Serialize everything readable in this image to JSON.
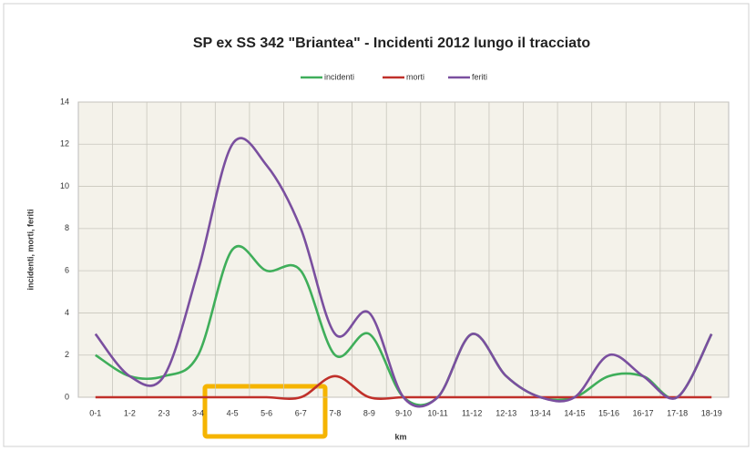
{
  "chart_data": {
    "type": "line",
    "title": "SP ex SS 342 \"Briantea\" - Incidenti 2012 lungo il tracciato",
    "x_label": "km",
    "y_label": "incidenti, morti, feriti",
    "categories": [
      "0-1",
      "1-2",
      "2-3",
      "3-4",
      "4-5",
      "5-6",
      "6-7",
      "7-8",
      "8-9",
      "9-10",
      "10-11",
      "11-12",
      "12-13",
      "13-14",
      "14-15",
      "15-16",
      "16-17",
      "17-18",
      "18-19"
    ],
    "series": [
      {
        "name": "incidenti",
        "color": "#3fae5a",
        "values": [
          2,
          1,
          1,
          2,
          7,
          6,
          6,
          2,
          3,
          0,
          0,
          3,
          1,
          0,
          0,
          1,
          1,
          0,
          3
        ]
      },
      {
        "name": "morti",
        "color": "#c0302a",
        "values": [
          0,
          0,
          0,
          0,
          0,
          0,
          0,
          1,
          0,
          0,
          0,
          0,
          0,
          0,
          0,
          0,
          0,
          0,
          0
        ]
      },
      {
        "name": "feriti",
        "color": "#7a4f9f",
        "values": [
          3,
          1,
          1,
          6,
          12,
          11,
          8,
          3,
          4,
          0,
          0,
          3,
          1,
          0,
          0,
          2,
          1,
          0,
          3
        ]
      }
    ],
    "ylim": [
      0,
      14
    ],
    "yticks": [
      0,
      2,
      4,
      6,
      8,
      10,
      12,
      14
    ],
    "grid": true,
    "legend": "top"
  }
}
